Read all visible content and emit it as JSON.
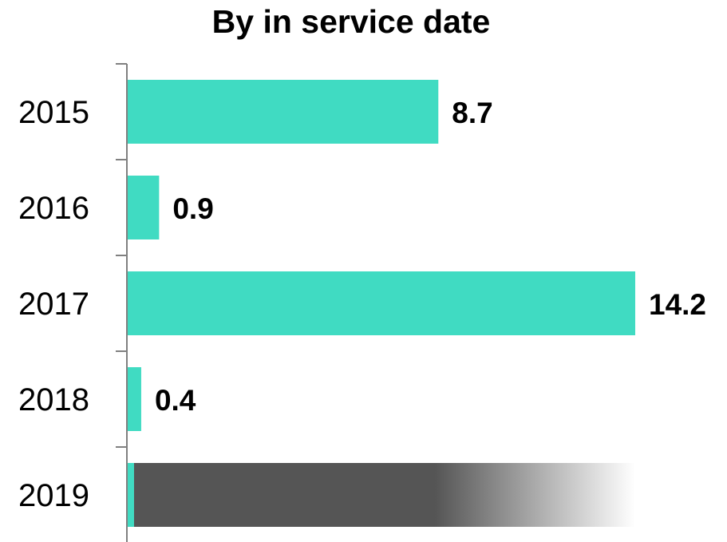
{
  "chart_data": {
    "type": "bar",
    "orientation": "horizontal",
    "title": "By in service date",
    "categories": [
      "2015",
      "2016",
      "2017",
      "2018",
      "2019"
    ],
    "values": [
      8.7,
      0.9,
      14.2,
      0.4,
      0.2
    ],
    "data_labels": [
      "8.7",
      "0.9",
      "14.2",
      "0.4",
      ""
    ],
    "xlim": [
      0,
      14.2
    ],
    "grid": false,
    "legend": "none",
    "xlabel": "",
    "ylabel": "",
    "occluding_overlay": {
      "category": "2019",
      "color": "#555555",
      "fade": "gradient to white on the right"
    }
  },
  "colors": {
    "bar": "#40DBC2",
    "axis": "#808080",
    "overlay": "#555555"
  }
}
